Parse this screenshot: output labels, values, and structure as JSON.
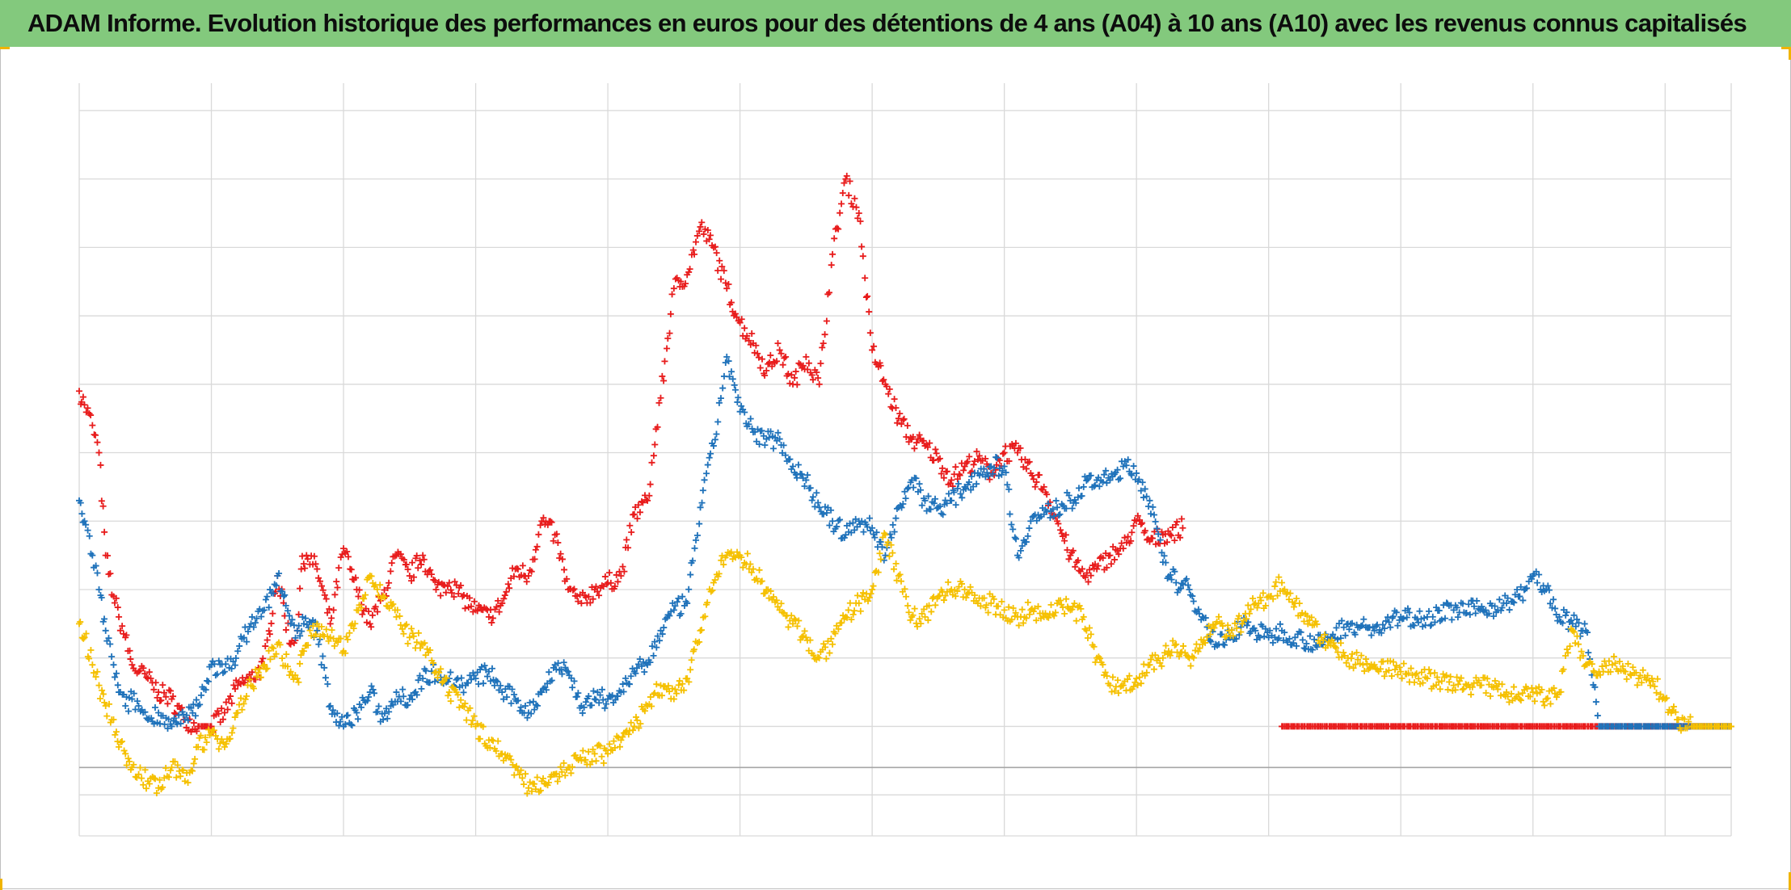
{
  "title": "ADAM Informe. Evolution historique des performances en euros pour des détentions de 4 ans (A04) à 10 ans (A10) avec les revenus connus capitalisés",
  "colors": {
    "title_background": "#83c97d",
    "grid": "#d9d9d9",
    "baseline": "#a6a6a6",
    "corner_marks": "#f0b400"
  },
  "chart_data": {
    "type": "scatter",
    "marker": "plus",
    "title": "ADAM Informe. Evolution historique des performances en euros pour des détentions de 4 ans (A04) à 10 ans (A10) avec les revenus connus capitalisés",
    "xlabel": "",
    "ylabel": "",
    "xlim": [
      0,
      12.5
    ],
    "ylim": [
      -1.6,
      9.4
    ],
    "x_gridlines": [
      0,
      1,
      2,
      3,
      4,
      5,
      6,
      7,
      8,
      9,
      10,
      11,
      12
    ],
    "y_gridlines": [
      -1.6,
      -1,
      0,
      1,
      2,
      3,
      4,
      5,
      6,
      7,
      8,
      9
    ],
    "baseline_y": -0.6,
    "tick_labels_shown": false,
    "legend": "none",
    "series": [
      {
        "color": "#e81c1c",
        "x": [
          0.0,
          0.04,
          0.1,
          0.15,
          0.2,
          0.26,
          0.3,
          0.35,
          0.4,
          0.45,
          0.52,
          0.6,
          0.7,
          0.8,
          0.9,
          1.0,
          1.1,
          1.2,
          1.3,
          1.4,
          1.5,
          1.6,
          1.65,
          1.68,
          1.72,
          1.8,
          1.9,
          2.0,
          2.05,
          2.1,
          2.2,
          2.3,
          2.4,
          2.5,
          2.6,
          2.7,
          2.8,
          2.9,
          3.0,
          3.1,
          3.2,
          3.3,
          3.4,
          3.5,
          3.6,
          3.7,
          3.8,
          3.9,
          4.0,
          4.1,
          4.2,
          4.3,
          4.4,
          4.5,
          4.6,
          4.7,
          4.8,
          4.9,
          5.0,
          5.1,
          5.2,
          5.3,
          5.4,
          5.5,
          5.6,
          5.7,
          5.8,
          5.9,
          6.0,
          6.1,
          6.2,
          6.3,
          6.4,
          6.5,
          6.6,
          6.7,
          6.8,
          6.9,
          7.0,
          7.1,
          7.2,
          7.3,
          7.4,
          7.5,
          7.6,
          7.7,
          7.8,
          7.9,
          8.0,
          8.1,
          8.2,
          8.35
        ],
        "y": [
          4.9,
          4.7,
          4.4,
          4.0,
          2.5,
          1.9,
          1.6,
          1.3,
          0.9,
          0.8,
          0.7,
          0.5,
          0.4,
          0.1,
          0.0,
          0.0,
          0.2,
          0.6,
          0.7,
          0.9,
          2.2,
          1.2,
          1.4,
          2.3,
          2.5,
          2.3,
          1.5,
          2.6,
          2.3,
          2.0,
          1.5,
          1.9,
          2.5,
          2.2,
          2.5,
          2.0,
          2.1,
          1.9,
          1.7,
          1.6,
          1.8,
          2.3,
          2.2,
          3.0,
          2.8,
          2.0,
          1.8,
          2.0,
          2.1,
          2.2,
          3.1,
          3.3,
          4.8,
          6.4,
          6.6,
          7.3,
          7.0,
          6.4,
          5.9,
          5.6,
          5.2,
          5.5,
          5.0,
          5.4,
          5.0,
          6.9,
          8.0,
          7.5,
          5.5,
          5.0,
          4.5,
          4.2,
          4.1,
          3.9,
          3.6,
          3.8,
          3.9,
          3.7,
          4.0,
          4.0,
          3.7,
          3.5,
          3.0,
          2.5,
          2.2,
          2.3,
          2.5,
          2.6,
          3.0,
          2.7,
          2.8,
          2.9
        ]
      },
      {
        "color": "#e81c1c",
        "x": [
          9.1,
          9.5,
          10.0,
          10.5,
          11.0,
          11.5,
          12.0,
          12.5
        ],
        "y": [
          0.0,
          0.0,
          0.0,
          0.0,
          0.0,
          0.0,
          0.0,
          0.0
        ]
      },
      {
        "color": "#1f72ba",
        "x": [
          0.0,
          0.04,
          0.1,
          0.15,
          0.2,
          0.26,
          0.3,
          0.35,
          0.4,
          0.45,
          0.52,
          0.6,
          0.7,
          0.8,
          0.9,
          1.0,
          1.1,
          1.2,
          1.3,
          1.4,
          1.5,
          1.6,
          1.65,
          1.7,
          1.8,
          1.9,
          2.0,
          2.1,
          2.2,
          2.3,
          2.4,
          2.5,
          2.6,
          2.7,
          2.8,
          2.9,
          3.0,
          3.1,
          3.2,
          3.3,
          3.4,
          3.5,
          3.6,
          3.7,
          3.8,
          3.9,
          4.0,
          4.1,
          4.2,
          4.3,
          4.4,
          4.5,
          4.6,
          4.7,
          4.8,
          4.9,
          5.0,
          5.1,
          5.2,
          5.3,
          5.4,
          5.5,
          5.6,
          5.7,
          5.8,
          5.9,
          6.0,
          6.1,
          6.2,
          6.3,
          6.4,
          6.5,
          6.6,
          6.7,
          6.8,
          6.9,
          7.0,
          7.1,
          7.2,
          7.3,
          7.4,
          7.5,
          7.6,
          7.7,
          7.8,
          7.9,
          8.0,
          8.1,
          8.2,
          8.3,
          8.4,
          8.5,
          8.6,
          8.7,
          8.8,
          8.9,
          9.0,
          9.1,
          9.2,
          9.4,
          9.6,
          9.8,
          10.0,
          10.2,
          10.4,
          10.6,
          10.8,
          10.9,
          11.0,
          11.1,
          11.2,
          11.3,
          11.4,
          11.5,
          11.6,
          11.7,
          11.8,
          11.9,
          12.0,
          12.1,
          12.2,
          12.3,
          12.4,
          12.5
        ],
        "y": [
          3.3,
          3.0,
          2.5,
          2.0,
          1.4,
          0.9,
          0.5,
          0.3,
          0.4,
          0.3,
          0.1,
          0.2,
          0.0,
          0.1,
          0.3,
          0.9,
          0.8,
          1.1,
          1.5,
          1.7,
          2.2,
          1.5,
          1.4,
          1.5,
          1.4,
          0.3,
          0.0,
          0.2,
          0.5,
          0.1,
          0.5,
          0.4,
          0.7,
          0.8,
          0.7,
          0.6,
          0.7,
          0.8,
          0.5,
          0.4,
          0.2,
          0.5,
          0.9,
          0.8,
          0.3,
          0.4,
          0.4,
          0.5,
          0.8,
          0.9,
          1.4,
          1.7,
          1.8,
          3.2,
          4.1,
          5.4,
          4.6,
          4.3,
          4.2,
          4.2,
          3.8,
          3.6,
          3.2,
          3.0,
          2.8,
          3.0,
          2.9,
          2.5,
          3.2,
          3.6,
          3.3,
          3.2,
          3.3,
          3.5,
          3.7,
          3.8,
          3.8,
          2.5,
          3.0,
          3.1,
          3.2,
          3.3,
          3.5,
          3.6,
          3.6,
          3.8,
          3.7,
          3.3,
          2.4,
          2.1,
          2.0,
          1.6,
          1.2,
          1.3,
          1.5,
          1.4,
          1.3,
          1.4,
          1.3,
          1.2,
          1.5,
          1.4,
          1.6,
          1.6,
          1.7,
          1.7,
          1.8,
          1.9,
          2.2,
          2.0,
          1.6,
          1.5,
          1.4,
          0.0,
          0.0,
          0.0,
          0.0,
          0.0,
          0.0,
          0.0,
          0.0,
          0.0,
          0.0,
          0.0
        ]
      },
      {
        "color": "#f5c000",
        "x": [
          0.0,
          0.04,
          0.1,
          0.15,
          0.2,
          0.26,
          0.3,
          0.35,
          0.4,
          0.45,
          0.52,
          0.6,
          0.7,
          0.8,
          0.9,
          1.0,
          1.1,
          1.2,
          1.3,
          1.4,
          1.5,
          1.6,
          1.65,
          1.7,
          1.8,
          1.9,
          2.0,
          2.1,
          2.2,
          2.3,
          2.4,
          2.5,
          2.6,
          2.7,
          2.8,
          2.9,
          3.0,
          3.1,
          3.2,
          3.3,
          3.4,
          3.5,
          3.6,
          3.7,
          3.8,
          3.9,
          4.0,
          4.1,
          4.2,
          4.3,
          4.4,
          4.5,
          4.6,
          4.7,
          4.8,
          4.9,
          5.0,
          5.1,
          5.2,
          5.3,
          5.4,
          5.5,
          5.6,
          5.7,
          5.8,
          5.9,
          6.0,
          6.1,
          6.2,
          6.3,
          6.4,
          6.5,
          6.6,
          6.7,
          6.8,
          6.9,
          7.0,
          7.1,
          7.2,
          7.3,
          7.4,
          7.5,
          7.6,
          7.7,
          7.8,
          7.9,
          8.0,
          8.1,
          8.2,
          8.3,
          8.4,
          8.5,
          8.6,
          8.7,
          8.8,
          8.9,
          9.0,
          9.1,
          9.2,
          9.4,
          9.6,
          9.8,
          10.0,
          10.2,
          10.4,
          10.6,
          10.8,
          10.9,
          11.0,
          11.1,
          11.2,
          11.3,
          11.4,
          11.5,
          11.6,
          11.7,
          11.8,
          11.9,
          12.0,
          12.1,
          12.2,
          12.3,
          12.4,
          12.5
        ],
        "y": [
          1.5,
          1.3,
          0.9,
          0.6,
          0.3,
          0.1,
          -0.3,
          -0.4,
          -0.6,
          -0.7,
          -0.8,
          -0.9,
          -0.6,
          -0.8,
          -0.3,
          -0.1,
          -0.3,
          0.2,
          0.6,
          0.9,
          1.2,
          0.8,
          0.7,
          1.1,
          1.5,
          1.3,
          1.1,
          1.7,
          2.2,
          1.9,
          1.6,
          1.3,
          1.2,
          0.8,
          0.5,
          0.3,
          0.0,
          -0.2,
          -0.4,
          -0.6,
          -0.9,
          -0.8,
          -0.7,
          -0.6,
          -0.5,
          -0.4,
          -0.4,
          -0.2,
          0.0,
          0.3,
          0.6,
          0.4,
          0.7,
          1.4,
          2.1,
          2.5,
          2.5,
          2.3,
          2.0,
          1.7,
          1.5,
          1.3,
          1.0,
          1.2,
          1.6,
          1.8,
          2.0,
          2.8,
          2.2,
          1.6,
          1.6,
          1.9,
          2.0,
          2.0,
          1.8,
          1.8,
          1.7,
          1.6,
          1.7,
          1.6,
          1.8,
          1.7,
          1.6,
          1.0,
          0.6,
          0.6,
          0.7,
          0.9,
          1.0,
          1.2,
          1.0,
          1.2,
          1.5,
          1.4,
          1.5,
          1.8,
          1.9,
          2.1,
          1.8,
          1.3,
          1.0,
          0.9,
          0.8,
          0.7,
          0.6,
          0.6,
          0.5,
          0.4,
          0.5,
          0.4,
          0.5,
          1.4,
          0.9,
          0.8,
          0.9,
          0.8,
          0.7,
          0.7,
          0.4,
          0.1,
          0.0,
          0.0,
          0.0,
          0.0
        ]
      }
    ]
  }
}
